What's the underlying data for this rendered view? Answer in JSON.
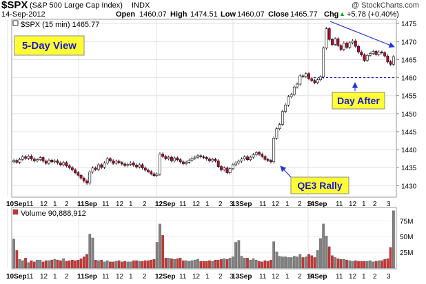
{
  "header": {
    "symbol": "$SPX",
    "name": "(S&P 500 Large Cap Index)",
    "exchange": "INDX",
    "watermark": "@ StockCharts.com",
    "date": "14-Sep-2012",
    "open_label": "Open",
    "open": "1460.07",
    "high_label": "High",
    "high": "1474.51",
    "low_label": "Low",
    "low": "1460.07",
    "close_label": "Close",
    "close": "1465.77",
    "chg_label": "Chg",
    "chg": "+5.78 (+0.40%)",
    "chg_arrow": "▲"
  },
  "price_panel": {
    "legend": "$SPX (15 min) 1465.77"
  },
  "volume_panel": {
    "legend": "Volume 90,888,912"
  },
  "annotations": {
    "five_day": "5-Day View",
    "qe3": "QE3 Rally",
    "day_after": "Day After"
  },
  "colors": {
    "up": "#ffffff",
    "down": "#cc0033",
    "wick": "#000000",
    "vol_up": "#808080",
    "vol_down": "#cc3333",
    "label_bg": "#ffff33",
    "label_text": "#1a1acc",
    "arrow": "#2233dd",
    "grid": "#dddddd"
  },
  "chart_data": [
    {
      "type": "candlestick",
      "interval": "15 min",
      "ylim": [
        1427,
        1476
      ],
      "yticks": [
        "1430",
        "1435",
        "1440",
        "1445",
        "1450",
        "1455",
        "1460",
        "1465",
        "1470",
        "1475"
      ],
      "reference_line": 1460,
      "x_labels": [
        {
          "t": "10Sep",
          "bold": true
        },
        {
          "t": "11"
        },
        {
          "t": "12"
        },
        {
          "t": "1"
        },
        {
          "t": "2"
        },
        {
          "t": "11Sep",
          "bold": true
        },
        {
          "t": "11"
        },
        {
          "t": "12"
        },
        {
          "t": "1"
        },
        {
          "t": "2"
        },
        {
          "t": "12Sep",
          "bold": true
        },
        {
          "t": "11"
        },
        {
          "t": "12"
        },
        {
          "t": "1"
        },
        {
          "t": "2"
        },
        {
          "t": "3"
        },
        {
          "t": "13Sep",
          "bold": true
        },
        {
          "t": "11"
        },
        {
          "t": "12"
        },
        {
          "t": "1"
        },
        {
          "t": "2"
        },
        {
          "t": "3"
        },
        {
          "t": "14Sep",
          "bold": true
        },
        {
          "t": "11"
        },
        {
          "t": "12"
        },
        {
          "t": "1"
        },
        {
          "t": "2"
        },
        {
          "t": "3"
        }
      ],
      "close": [
        1437.0,
        1436.5,
        1437.3,
        1438.0,
        1437.6,
        1438.2,
        1437.4,
        1436.9,
        1437.2,
        1437.8,
        1436.8,
        1436.2,
        1437.1,
        1436.6,
        1436.9,
        1436.3,
        1435.8,
        1436.4,
        1435.5,
        1435.0,
        1434.4,
        1433.6,
        1432.9,
        1432.1,
        1431.3,
        1430.7,
        1433.8,
        1434.9,
        1434.5,
        1435.8,
        1435.1,
        1436.3,
        1437.5,
        1436.9,
        1436.2,
        1436.8,
        1436.4,
        1436.0,
        1435.6,
        1435.9,
        1436.3,
        1435.7,
        1435.2,
        1435.8,
        1434.9,
        1434.3,
        1433.9,
        1433.3,
        1432.8,
        1433.2,
        1438.8,
        1438.1,
        1437.5,
        1437.9,
        1436.9,
        1437.7,
        1437.2,
        1436.6,
        1436.1,
        1436.5,
        1437.1,
        1437.6,
        1437.9,
        1438.3,
        1438.0,
        1437.8,
        1437.4,
        1436.9,
        1437.3,
        1436.9,
        1435.3,
        1434.4,
        1434.9,
        1433.6,
        1434.7,
        1435.8,
        1436.3,
        1436.8,
        1437.4,
        1438.0,
        1437.2,
        1437.9,
        1438.6,
        1439.2,
        1438.7,
        1438.1,
        1437.3,
        1437.0,
        1436.6,
        1443.2,
        1445.8,
        1447.0,
        1450.6,
        1452.4,
        1454.7,
        1455.3,
        1457.4,
        1458.2,
        1460.5,
        1460.3,
        1461.1,
        1459.7,
        1459.2,
        1458.6,
        1459.4,
        1460.2,
        1468.2,
        1473.6,
        1470.6,
        1469.2,
        1470.8,
        1468.9,
        1467.8,
        1469.6,
        1468.4,
        1469.7,
        1470.2,
        1468.7,
        1467.1,
        1466.3,
        1464.8,
        1466.2,
        1466.7,
        1467.3,
        1466.4,
        1467.1,
        1466.9,
        1466.0,
        1464.4,
        1463.7,
        1465.77
      ],
      "up_color": "#ffffff",
      "down_color": "#cc0033"
    },
    {
      "type": "bar",
      "name": "Volume",
      "ylim": [
        0,
        95
      ],
      "yticks": [
        "25M",
        "50M",
        "75M"
      ],
      "tick_values": [
        25,
        50,
        75
      ],
      "values": [
        46,
        28,
        14,
        12,
        16,
        9,
        12,
        10,
        13,
        13,
        10,
        12,
        12,
        13,
        14,
        13,
        12,
        15,
        11,
        12,
        13,
        12,
        13,
        15,
        18,
        22,
        54,
        48,
        13,
        12,
        13,
        10,
        12,
        10,
        10,
        11,
        12,
        10,
        11,
        10,
        10,
        12,
        12,
        11,
        11,
        12,
        12,
        13,
        14,
        41,
        70,
        52,
        16,
        16,
        15,
        14,
        15,
        16,
        12,
        12,
        11,
        12,
        13,
        14,
        11,
        11,
        11,
        12,
        11,
        13,
        13,
        14,
        15,
        14,
        16,
        18,
        41,
        44,
        19,
        16,
        16,
        13,
        15,
        13,
        11,
        10,
        12,
        11,
        13,
        42,
        26,
        19,
        18,
        18,
        17,
        17,
        19,
        18,
        22,
        17,
        18,
        22,
        20,
        17,
        28,
        47,
        70,
        51,
        34,
        20,
        17,
        15,
        14,
        14,
        13,
        12,
        11,
        12,
        11,
        11,
        11,
        11,
        12,
        10,
        11,
        12,
        12,
        14,
        15,
        33,
        91
      ],
      "vol_up_color": "#808080",
      "vol_down_color": "#cc3333"
    }
  ]
}
